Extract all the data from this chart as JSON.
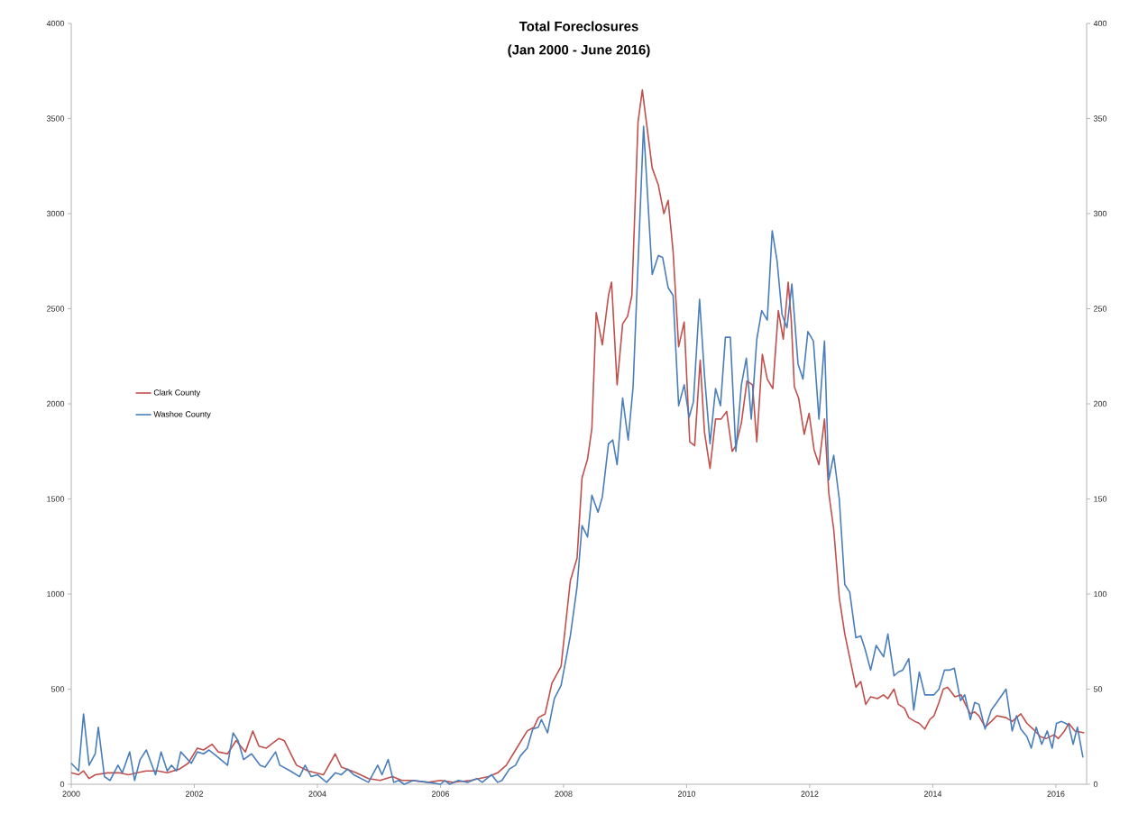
{
  "chart_data": {
    "type": "line",
    "title": "Total Foreclosures",
    "subtitle": "(Jan 2000 - June 2016)",
    "xlim": [
      2000,
      2016.5
    ],
    "xticks": [
      2000,
      2002,
      2004,
      2006,
      2008,
      2010,
      2012,
      2014,
      2016
    ],
    "ylim": [
      0,
      4000
    ],
    "yticks": [
      0,
      500,
      1000,
      1500,
      2000,
      2500,
      3000,
      3500,
      4000
    ],
    "y2lim": [
      0,
      400
    ],
    "y2ticks": [
      0,
      50,
      100,
      150,
      200,
      250,
      300,
      350,
      400
    ],
    "legend": "left",
    "grid": false,
    "marker": "none",
    "line_style": "solid",
    "series": [
      {
        "name": "Clark County",
        "color": "#c0504d",
        "x": [
          2000.0,
          2000.12,
          2000.2,
          2000.29,
          2000.39,
          2000.59,
          2000.78,
          2000.93,
          2001.07,
          2001.22,
          2001.41,
          2001.56,
          2001.76,
          2001.9,
          2002.05,
          2002.15,
          2002.29,
          2002.39,
          2002.54,
          2002.68,
          2002.83,
          2002.95,
          2003.05,
          2003.17,
          2003.37,
          2003.46,
          2003.66,
          2003.85,
          2004.1,
          2004.29,
          2004.39,
          2004.63,
          2004.83,
          2005.02,
          2005.22,
          2005.37,
          2005.51,
          2005.8,
          2006.0,
          2006.2,
          2006.49,
          2006.78,
          2006.93,
          2007.07,
          2007.22,
          2007.41,
          2007.52,
          2007.59,
          2007.7,
          2007.81,
          2007.96,
          2008.11,
          2008.22,
          2008.3,
          2008.39,
          2008.46,
          2008.53,
          2008.63,
          2008.73,
          2008.78,
          2008.87,
          2008.96,
          2009.04,
          2009.11,
          2009.21,
          2009.28,
          2009.44,
          2009.54,
          2009.63,
          2009.7,
          2009.78,
          2009.87,
          2009.96,
          2010.05,
          2010.13,
          2010.22,
          2010.29,
          2010.38,
          2010.47,
          2010.56,
          2010.65,
          2010.74,
          2010.8,
          2010.89,
          2010.98,
          2011.07,
          2011.14,
          2011.23,
          2011.31,
          2011.4,
          2011.49,
          2011.57,
          2011.65,
          2011.7,
          2011.75,
          2011.82,
          2011.91,
          2011.99,
          2012.07,
          2012.15,
          2012.24,
          2012.31,
          2012.39,
          2012.48,
          2012.57,
          2012.66,
          2012.75,
          2012.83,
          2012.91,
          2012.99,
          2013.1,
          2013.2,
          2013.27,
          2013.37,
          2013.44,
          2013.54,
          2013.61,
          2013.71,
          2013.78,
          2013.87,
          2013.95,
          2014.02,
          2014.1,
          2014.17,
          2014.24,
          2014.36,
          2014.46,
          2014.53,
          2014.61,
          2014.68,
          2014.75,
          2014.85,
          2014.95,
          2015.04,
          2015.19,
          2015.29,
          2015.36,
          2015.43,
          2015.53,
          2015.63,
          2015.75,
          2015.84,
          2015.97,
          2016.04,
          2016.14,
          2016.21,
          2016.31,
          2016.46
        ],
        "values": [
          60,
          50,
          70,
          30,
          50,
          60,
          60,
          50,
          60,
          70,
          70,
          60,
          80,
          110,
          190,
          180,
          210,
          170,
          160,
          230,
          170,
          280,
          200,
          190,
          240,
          230,
          100,
          70,
          50,
          160,
          90,
          60,
          30,
          20,
          40,
          20,
          20,
          10,
          20,
          10,
          20,
          40,
          60,
          100,
          180,
          280,
          300,
          350,
          370,
          530,
          620,
          1070,
          1190,
          1610,
          1710,
          1870,
          2480,
          2310,
          2570,
          2640,
          2100,
          2420,
          2460,
          2570,
          3480,
          3650,
          3240,
          3150,
          3000,
          3070,
          2800,
          2300,
          2430,
          1800,
          1780,
          2230,
          1850,
          1660,
          1920,
          1920,
          1960,
          1750,
          1780,
          1900,
          2120,
          2100,
          1800,
          2260,
          2130,
          2080,
          2490,
          2340,
          2640,
          2440,
          2090,
          2030,
          1840,
          1950,
          1760,
          1680,
          1920,
          1530,
          1340,
          980,
          790,
          650,
          510,
          540,
          420,
          460,
          450,
          470,
          450,
          500,
          420,
          400,
          350,
          330,
          320,
          290,
          340,
          360,
          430,
          500,
          510,
          460,
          470,
          420,
          370,
          380,
          360,
          300,
          330,
          360,
          350,
          330,
          350,
          370,
          320,
          290,
          250,
          240,
          260,
          240,
          280,
          320,
          280,
          270
        ]
      },
      {
        "name": "Washoe County",
        "color": "#4a7ebb",
        "axis": "y2",
        "x": [
          2000.0,
          2000.12,
          2000.2,
          2000.29,
          2000.39,
          2000.44,
          2000.54,
          2000.63,
          2000.76,
          2000.83,
          2000.95,
          2001.03,
          2001.12,
          2001.22,
          2001.37,
          2001.46,
          2001.56,
          2001.63,
          2001.71,
          2001.78,
          2001.95,
          2002.05,
          2002.15,
          2002.24,
          2002.39,
          2002.54,
          2002.63,
          2002.71,
          2002.8,
          2002.93,
          2003.07,
          2003.15,
          2003.32,
          2003.39,
          2003.56,
          2003.71,
          2003.8,
          2003.9,
          2004.0,
          2004.15,
          2004.29,
          2004.39,
          2004.49,
          2004.59,
          2004.83,
          2004.98,
          2005.05,
          2005.15,
          2005.24,
          2005.32,
          2005.41,
          2005.56,
          2005.8,
          2006.0,
          2006.07,
          2006.15,
          2006.29,
          2006.44,
          2006.59,
          2006.68,
          2006.83,
          2006.93,
          2007.0,
          2007.12,
          2007.22,
          2007.3,
          2007.41,
          2007.5,
          2007.59,
          2007.64,
          2007.74,
          2007.85,
          2007.96,
          2008.11,
          2008.22,
          2008.3,
          2008.39,
          2008.46,
          2008.56,
          2008.63,
          2008.73,
          2008.8,
          2008.87,
          2008.96,
          2009.05,
          2009.13,
          2009.3,
          2009.44,
          2009.54,
          2009.61,
          2009.7,
          2009.78,
          2009.87,
          2009.96,
          2010.04,
          2010.11,
          2010.21,
          2010.29,
          2010.38,
          2010.47,
          2010.55,
          2010.63,
          2010.71,
          2010.8,
          2010.89,
          2010.97,
          2011.05,
          2011.14,
          2011.22,
          2011.31,
          2011.39,
          2011.47,
          2011.55,
          2011.63,
          2011.71,
          2011.81,
          2011.89,
          2011.97,
          2012.06,
          2012.15,
          2012.24,
          2012.31,
          2012.39,
          2012.48,
          2012.57,
          2012.65,
          2012.75,
          2012.83,
          2012.9,
          2012.99,
          2013.08,
          2013.2,
          2013.27,
          2013.37,
          2013.44,
          2013.51,
          2013.61,
          2013.69,
          2013.78,
          2013.87,
          2013.95,
          2014.02,
          2014.1,
          2014.19,
          2014.27,
          2014.35,
          2014.45,
          2014.52,
          2014.61,
          2014.68,
          2014.75,
          2014.85,
          2014.95,
          2015.04,
          2015.19,
          2015.29,
          2015.36,
          2015.43,
          2015.53,
          2015.6,
          2015.68,
          2015.77,
          2015.86,
          2015.94,
          2016.01,
          2016.09,
          2016.16,
          2016.21,
          2016.28,
          2016.35,
          2016.44
        ],
        "values": [
          11,
          7,
          37,
          10,
          16,
          30,
          4,
          2,
          10,
          6,
          17,
          2,
          13,
          18,
          5,
          17,
          7,
          10,
          7,
          17,
          11,
          17,
          16,
          18,
          14,
          10,
          27,
          23,
          13,
          16,
          10,
          9,
          17,
          10,
          7,
          4,
          10,
          4,
          5,
          1,
          6,
          5,
          8,
          5,
          1,
          10,
          5,
          13,
          1,
          2,
          0,
          2,
          1,
          0,
          2,
          0,
          2,
          1,
          3,
          1,
          5,
          1,
          2,
          8,
          10,
          15,
          19,
          29,
          30,
          34,
          27,
          45,
          52,
          78,
          104,
          136,
          130,
          152,
          143,
          151,
          179,
          181,
          168,
          203,
          181,
          209,
          346,
          268,
          278,
          277,
          261,
          257,
          199,
          210,
          193,
          201,
          255,
          215,
          179,
          208,
          199,
          235,
          235,
          175,
          210,
          224,
          192,
          234,
          249,
          244,
          291,
          275,
          247,
          240,
          263,
          221,
          213,
          238,
          233,
          192,
          233,
          160,
          173,
          150,
          105,
          101,
          77,
          78,
          71,
          60,
          73,
          67,
          79,
          57,
          59,
          60,
          66,
          39,
          59,
          47,
          47,
          47,
          50,
          60,
          60,
          61,
          44,
          47,
          34,
          43,
          42,
          29,
          39,
          43,
          50,
          28,
          36,
          29,
          25,
          19,
          30,
          21,
          28,
          19,
          32,
          33,
          32,
          31,
          21,
          30,
          14
        ]
      }
    ]
  }
}
